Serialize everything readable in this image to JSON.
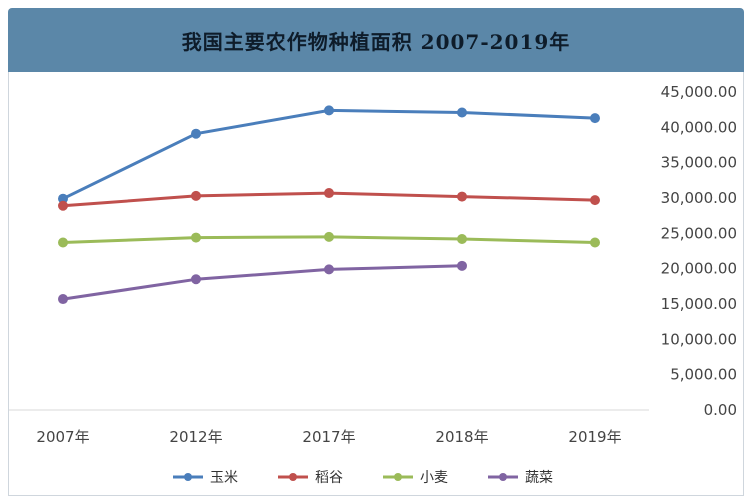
{
  "header": {
    "title": "我国主要农作物种植面积 2007-2019年"
  },
  "chart_data": {
    "type": "line",
    "title": "我国主要农作物种植面积 2007-2019年",
    "categories": [
      "2007年",
      "2012年",
      "2017年",
      "2018年",
      "2019年"
    ],
    "ylim": [
      0,
      45000
    ],
    "yticks": [
      "0.00",
      "5,000.00",
      "10,000.00",
      "15,000.00",
      "20,000.00",
      "25,000.00",
      "30,000.00",
      "35,000.00",
      "40,000.00",
      "45,000.00"
    ],
    "ytick_values": [
      0,
      5000,
      10000,
      15000,
      20000,
      25000,
      30000,
      35000,
      40000,
      45000
    ],
    "y_axis_position": "right",
    "grid": false,
    "legend_position": "bottom",
    "series": [
      {
        "name": "玉米",
        "color": "#4a7ebb",
        "values": [
          29900,
          39100,
          42400,
          42100,
          41300
        ]
      },
      {
        "name": "稻谷",
        "color": "#c0504d",
        "values": [
          28900,
          30300,
          30700,
          30200,
          29700
        ]
      },
      {
        "name": "小麦",
        "color": "#9bbb59",
        "values": [
          23700,
          24400,
          24500,
          24200,
          23700
        ]
      },
      {
        "name": "蔬菜",
        "color": "#8064a2",
        "values": [
          15700,
          18500,
          19900,
          20400,
          null
        ]
      }
    ]
  }
}
